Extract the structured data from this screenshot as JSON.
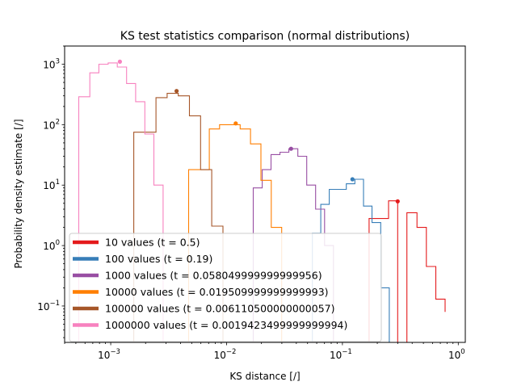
{
  "chart_data": {
    "type": "step-histogram",
    "title": "KS test statistics comparison (normal distributions)",
    "xlabel": "KS distance [/]",
    "ylabel": "Probability density estimate [/]",
    "xscale": "log",
    "yscale": "log",
    "xlim": [
      0.0004,
      1.15
    ],
    "ylim": [
      0.025,
      2000
    ],
    "x_ticks": [
      {
        "value": 0.001,
        "base": "10",
        "exp": "−3"
      },
      {
        "value": 0.01,
        "base": "10",
        "exp": "−2"
      },
      {
        "value": 0.1,
        "base": "10",
        "exp": "−1"
      },
      {
        "value": 1,
        "base": "10",
        "exp": "0"
      }
    ],
    "y_ticks": [
      {
        "value": 0.1,
        "base": "10",
        "exp": "−1"
      },
      {
        "value": 1,
        "base": "10",
        "exp": "0"
      },
      {
        "value": 10,
        "base": "10",
        "exp": "1"
      },
      {
        "value": 100,
        "base": "10",
        "exp": "2"
      },
      {
        "value": 1000,
        "base": "10",
        "exp": "3"
      }
    ],
    "legend_position": "lower-left",
    "series": [
      {
        "name": "10 values (t = 0.5)",
        "color": "#e41a1c",
        "edges": [
          0.17,
          0.21,
          0.25,
          0.3,
          0.36,
          0.44,
          0.53,
          0.64,
          0.77
        ],
        "density": [
          2.8,
          2.8,
          5.5,
          0.01,
          3.5,
          2.0,
          0.45,
          0.13,
          0.08
        ],
        "marker": [
          0.3,
          5.4
        ]
      },
      {
        "name": "100 values (t = 0.19)",
        "color": "#377eb8",
        "edges": [
          0.055,
          0.065,
          0.077,
          0.091,
          0.108,
          0.128,
          0.152,
          0.18,
          0.214,
          0.254
        ],
        "density": [
          1.6,
          4.8,
          8.5,
          8.5,
          10.5,
          12.5,
          4.5,
          2.4,
          0.2
        ],
        "marker": [
          0.122,
          12.5
        ]
      },
      {
        "name": "1000 values (t = 0.058049999999999956)",
        "color": "#984ea3",
        "edges": [
          0.017,
          0.0203,
          0.0242,
          0.0289,
          0.0345,
          0.0412,
          0.0492,
          0.0587,
          0.0701,
          0.0837
        ],
        "density": [
          9,
          18,
          32,
          35,
          40,
          30,
          10,
          4,
          1.0
        ],
        "marker": [
          0.036,
          40
        ]
      },
      {
        "name": "10000 values (t = 0.019509999999999993)",
        "color": "#ff7f00",
        "edges": [
          0.0047,
          0.0058,
          0.0071,
          0.0087,
          0.0107,
          0.0131,
          0.0161,
          0.0198,
          0.0243,
          0.0299
        ],
        "density": [
          18,
          18,
          85,
          100,
          100,
          85,
          48,
          12,
          2.0
        ],
        "marker": [
          0.012,
          105
        ]
      },
      {
        "name": "100000 values (t = 0.006110500000000057)",
        "color": "#a65628",
        "edges": [
          0.00158,
          0.00197,
          0.00246,
          0.00307,
          0.00383,
          0.00478,
          0.00597,
          0.00745,
          0.0093
        ],
        "density": [
          75,
          75,
          280,
          330,
          300,
          140,
          18,
          2.1
        ],
        "marker": [
          0.0037,
          360
        ]
      },
      {
        "name": "1000000 values (t = 0.0019423499999999994)",
        "color": "#f781bf",
        "edges": [
          0.00053,
          0.00066,
          0.00079,
          0.00095,
          0.00114,
          0.00137,
          0.00164,
          0.00197,
          0.00236,
          0.00283
        ],
        "density": [
          290,
          720,
          1000,
          1050,
          900,
          480,
          240,
          70,
          10
        ],
        "marker": [
          0.0012,
          1100
        ]
      }
    ]
  }
}
